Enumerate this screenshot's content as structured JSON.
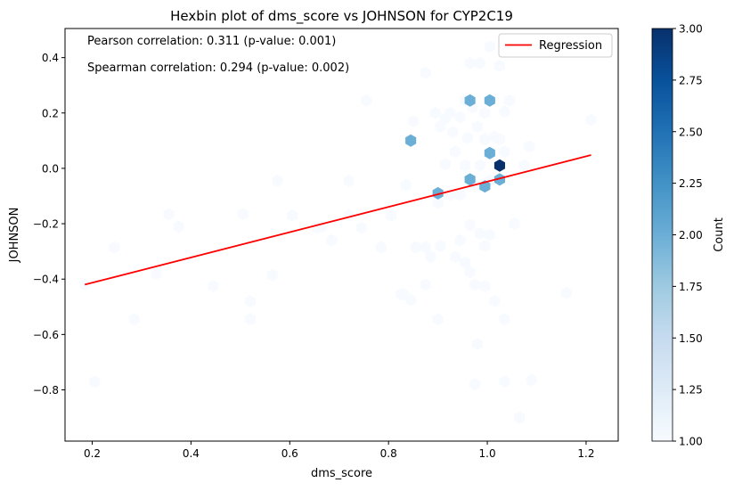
{
  "chart_data": {
    "type": "hexbin",
    "title": "Hexbin plot of dms_score vs JOHNSON for CYP2C19",
    "xlabel": "dms_score",
    "ylabel": "JOHNSON",
    "xlim": [
      0.145,
      1.265
    ],
    "ylim": [
      -0.985,
      0.505
    ],
    "x_ticks": [
      0.2,
      0.4,
      0.6,
      0.8,
      1.0,
      1.2
    ],
    "x_tick_labels": [
      "0.2",
      "0.4",
      "0.6",
      "0.8",
      "1.0",
      "1.2"
    ],
    "y_ticks": [
      -0.8,
      -0.6,
      -0.4,
      -0.2,
      0.0,
      0.2,
      0.4
    ],
    "y_tick_labels": [
      "−0.8",
      "−0.6",
      "−0.4",
      "−0.2",
      "0.0",
      "0.2",
      "0.4"
    ],
    "annotations": [
      "Pearson correlation: 0.311 (p-value: 0.001)",
      "Spearman correlation: 0.294 (p-value: 0.002)"
    ],
    "legend": {
      "placement": "top-right",
      "entries": [
        {
          "label": "Regression",
          "color": "#ff0000"
        }
      ]
    },
    "regression": {
      "x": [
        0.185,
        1.21
      ],
      "y": [
        -0.42,
        0.048
      ],
      "color": "#ff0000"
    },
    "colorbar": {
      "label": "Count",
      "range": [
        1.0,
        3.0
      ],
      "ticks": [
        1.0,
        1.25,
        1.5,
        1.75,
        2.0,
        2.25,
        2.5,
        2.75,
        3.0
      ],
      "tick_labels": [
        "1.00",
        "1.25",
        "1.50",
        "1.75",
        "2.00",
        "2.25",
        "2.50",
        "2.75",
        "3.00"
      ],
      "colormap": "Blues",
      "colors": [
        "#f7fbff",
        "#deebf7",
        "#c6dbef",
        "#9ecae1",
        "#6baed6",
        "#4292c6",
        "#2171b5",
        "#08519c",
        "#08306b"
      ]
    },
    "hexbins": [
      {
        "x": 0.185,
        "y": -0.42,
        "count": 1
      },
      {
        "x": 0.205,
        "y": -0.77,
        "count": 1
      },
      {
        "x": 0.245,
        "y": -0.285,
        "count": 1
      },
      {
        "x": 0.285,
        "y": -0.545,
        "count": 1
      },
      {
        "x": 0.33,
        "y": -0.38,
        "count": 1
      },
      {
        "x": 0.355,
        "y": -0.165,
        "count": 1
      },
      {
        "x": 0.375,
        "y": -0.21,
        "count": 1
      },
      {
        "x": 0.445,
        "y": -0.425,
        "count": 1
      },
      {
        "x": 0.505,
        "y": -0.165,
        "count": 1
      },
      {
        "x": 0.52,
        "y": -0.545,
        "count": 1
      },
      {
        "x": 0.52,
        "y": -0.48,
        "count": 1
      },
      {
        "x": 0.565,
        "y": -0.385,
        "count": 1
      },
      {
        "x": 0.575,
        "y": -0.045,
        "count": 1
      },
      {
        "x": 0.605,
        "y": -0.17,
        "count": 1
      },
      {
        "x": 0.655,
        "y": -0.215,
        "count": 1
      },
      {
        "x": 0.665,
        "y": -0.21,
        "count": 1
      },
      {
        "x": 0.685,
        "y": -0.26,
        "count": 1
      },
      {
        "x": 0.72,
        "y": -0.045,
        "count": 1
      },
      {
        "x": 0.72,
        "y": -0.17,
        "count": 1
      },
      {
        "x": 0.745,
        "y": -0.215,
        "count": 1
      },
      {
        "x": 0.755,
        "y": 0.245,
        "count": 1
      },
      {
        "x": 0.785,
        "y": -0.285,
        "count": 1
      },
      {
        "x": 0.805,
        "y": -0.17,
        "count": 1
      },
      {
        "x": 0.825,
        "y": -0.455,
        "count": 1
      },
      {
        "x": 0.835,
        "y": -0.06,
        "count": 1
      },
      {
        "x": 0.845,
        "y": -0.475,
        "count": 1
      },
      {
        "x": 0.85,
        "y": 0.17,
        "count": 1
      },
      {
        "x": 0.855,
        "y": -0.285,
        "count": 1
      },
      {
        "x": 0.875,
        "y": 0.345,
        "count": 1
      },
      {
        "x": 0.875,
        "y": -0.285,
        "count": 1
      },
      {
        "x": 0.875,
        "y": -0.42,
        "count": 1
      },
      {
        "x": 0.885,
        "y": -0.32,
        "count": 1
      },
      {
        "x": 0.895,
        "y": 0.2,
        "count": 1
      },
      {
        "x": 0.9,
        "y": -0.125,
        "count": 1
      },
      {
        "x": 0.9,
        "y": -0.545,
        "count": 1
      },
      {
        "x": 0.905,
        "y": 0.15,
        "count": 1
      },
      {
        "x": 0.905,
        "y": -0.28,
        "count": 1
      },
      {
        "x": 0.915,
        "y": 0.18,
        "count": 1
      },
      {
        "x": 0.915,
        "y": 0.015,
        "count": 1
      },
      {
        "x": 0.925,
        "y": 0.2,
        "count": 1
      },
      {
        "x": 0.93,
        "y": 0.13,
        "count": 1
      },
      {
        "x": 0.935,
        "y": 0.06,
        "count": 1
      },
      {
        "x": 0.945,
        "y": -0.095,
        "count": 1
      },
      {
        "x": 0.945,
        "y": -0.26,
        "count": 1
      },
      {
        "x": 0.955,
        "y": 0.01,
        "count": 1
      },
      {
        "x": 0.955,
        "y": -0.34,
        "count": 1
      },
      {
        "x": 0.96,
        "y": 0.11,
        "count": 1
      },
      {
        "x": 0.965,
        "y": 0.38,
        "count": 1
      },
      {
        "x": 0.965,
        "y": -0.205,
        "count": 1
      },
      {
        "x": 0.965,
        "y": -0.375,
        "count": 1
      },
      {
        "x": 0.97,
        "y": 0.22,
        "count": 1
      },
      {
        "x": 0.975,
        "y": -0.06,
        "count": 1
      },
      {
        "x": 0.975,
        "y": -0.42,
        "count": 1
      },
      {
        "x": 0.975,
        "y": -0.78,
        "count": 1
      },
      {
        "x": 0.98,
        "y": 0.15,
        "count": 1
      },
      {
        "x": 0.985,
        "y": 0.38,
        "count": 1
      },
      {
        "x": 0.985,
        "y": 0.01,
        "count": 1
      },
      {
        "x": 0.985,
        "y": -0.235,
        "count": 1
      },
      {
        "x": 0.995,
        "y": 0.2,
        "count": 1
      },
      {
        "x": 0.995,
        "y": 0.105,
        "count": 1
      },
      {
        "x": 0.995,
        "y": -0.28,
        "count": 1
      },
      {
        "x": 0.995,
        "y": -0.425,
        "count": 1
      },
      {
        "x": 1.005,
        "y": 0.44,
        "count": 1
      },
      {
        "x": 1.005,
        "y": -0.045,
        "count": 1
      },
      {
        "x": 1.005,
        "y": -0.24,
        "count": 1
      },
      {
        "x": 1.015,
        "y": 0.115,
        "count": 1
      },
      {
        "x": 1.015,
        "y": -0.48,
        "count": 1
      },
      {
        "x": 1.025,
        "y": 0.37,
        "count": 1
      },
      {
        "x": 1.025,
        "y": 0.105,
        "count": 1
      },
      {
        "x": 1.035,
        "y": 0.205,
        "count": 1
      },
      {
        "x": 1.035,
        "y": 0.06,
        "count": 1
      },
      {
        "x": 1.035,
        "y": -0.545,
        "count": 1
      },
      {
        "x": 1.035,
        "y": -0.77,
        "count": 1
      },
      {
        "x": 1.045,
        "y": 0.245,
        "count": 1
      },
      {
        "x": 1.055,
        "y": -0.2,
        "count": 1
      },
      {
        "x": 1.065,
        "y": -0.9,
        "count": 1
      },
      {
        "x": 1.075,
        "y": 0.01,
        "count": 1
      },
      {
        "x": 1.085,
        "y": 0.08,
        "count": 1
      },
      {
        "x": 1.09,
        "y": -0.765,
        "count": 1
      },
      {
        "x": 1.16,
        "y": -0.45,
        "count": 1
      },
      {
        "x": 1.21,
        "y": 0.175,
        "count": 1
      },
      {
        "x": 0.925,
        "y": -0.095,
        "count": 1
      },
      {
        "x": 0.935,
        "y": -0.32,
        "count": 1
      },
      {
        "x": 0.98,
        "y": -0.635,
        "count": 1
      },
      {
        "x": 0.955,
        "y": 0.245,
        "count": 1
      },
      {
        "x": 0.945,
        "y": 0.185,
        "count": 1
      },
      {
        "x": 0.83,
        "y": -0.455,
        "count": 1
      },
      {
        "x": 0.505,
        "y": -0.165,
        "count": 1
      },
      {
        "x": 0.845,
        "y": 0.1,
        "count": 2
      },
      {
        "x": 0.965,
        "y": 0.245,
        "count": 2
      },
      {
        "x": 1.005,
        "y": 0.245,
        "count": 2
      },
      {
        "x": 1.005,
        "y": 0.055,
        "count": 2
      },
      {
        "x": 0.965,
        "y": -0.04,
        "count": 2
      },
      {
        "x": 1.025,
        "y": -0.04,
        "count": 2
      },
      {
        "x": 0.995,
        "y": -0.065,
        "count": 2
      },
      {
        "x": 0.9,
        "y": -0.09,
        "count": 2
      },
      {
        "x": 1.025,
        "y": 0.01,
        "count": 3
      }
    ]
  }
}
